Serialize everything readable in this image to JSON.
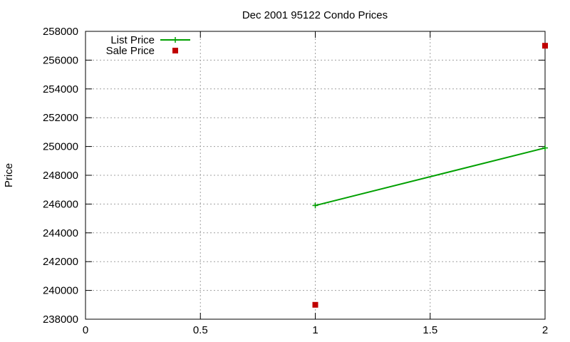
{
  "chart_data": {
    "type": "line",
    "title": "Dec 2001 95122 Condo Prices",
    "xlabel": "",
    "ylabel": "Price",
    "xlim": [
      0,
      2
    ],
    "ylim": [
      238000,
      258000
    ],
    "x_ticks": [
      "0",
      "0.5",
      "1",
      "1.5",
      "2"
    ],
    "y_ticks": [
      "238000",
      "240000",
      "242000",
      "244000",
      "246000",
      "248000",
      "250000",
      "252000",
      "254000",
      "256000",
      "258000"
    ],
    "grid": true,
    "legend_position": "top-left",
    "series": [
      {
        "name": "List Price",
        "style": "linespoints",
        "marker": "plus",
        "color": "#00a000",
        "x": [
          1,
          2
        ],
        "y": [
          245900,
          249900
        ]
      },
      {
        "name": "Sale Price",
        "style": "points",
        "marker": "square",
        "color": "#c00000",
        "x": [
          1,
          2
        ],
        "y": [
          239000,
          257000
        ]
      }
    ]
  }
}
